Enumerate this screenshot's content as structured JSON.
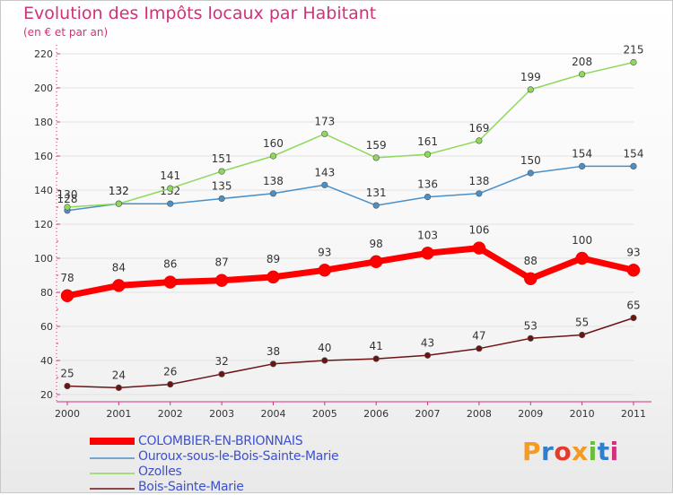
{
  "header": {
    "title": "Evolution des Impôts locaux par Habitant",
    "subtitle": "(en € et par an)"
  },
  "brand": {
    "text": "Proxiti",
    "colors": [
      "#f59a23",
      "#2f7fd0",
      "#e53b2c",
      "#f59a23",
      "#6abf3a",
      "#2f7fd0",
      "#d0327a"
    ]
  },
  "colors": {
    "title": "#d0327a",
    "axis": "#d0327a",
    "grid": "#e2e2e2",
    "legend_text": "#3c50d2"
  },
  "chart_data": {
    "type": "line",
    "title": "Evolution des Impôts locaux par Habitant",
    "subtitle": "(en € et par an)",
    "xlabel": "",
    "ylabel": "",
    "x": [
      "2000",
      "2001",
      "2002",
      "2003",
      "2004",
      "2005",
      "2006",
      "2007",
      "2008",
      "2009",
      "2010",
      "2011"
    ],
    "ylim": [
      20,
      220
    ],
    "yticks": [
      20,
      40,
      60,
      80,
      100,
      120,
      140,
      160,
      180,
      200,
      220
    ],
    "grid": true,
    "legend_position": "bottom-left",
    "series": [
      {
        "name": "COLOMBIER-EN-BRIONNAIS",
        "color": "#ff0000",
        "thick": true,
        "values": [
          78,
          84,
          86,
          87,
          89,
          93,
          98,
          103,
          106,
          88,
          100,
          93
        ]
      },
      {
        "name": "Ouroux-sous-le-Bois-Sainte-Marie",
        "color": "#4a90c8",
        "thick": false,
        "values": [
          128,
          132,
          132,
          135,
          138,
          143,
          131,
          136,
          138,
          150,
          154,
          154
        ]
      },
      {
        "name": "Ozolles",
        "color": "#8ed85a",
        "thick": false,
        "values": [
          130,
          132,
          141,
          151,
          160,
          173,
          159,
          161,
          169,
          199,
          208,
          215
        ]
      },
      {
        "name": "Bois-Sainte-Marie",
        "color": "#6b1414",
        "thick": false,
        "values": [
          25,
          24,
          26,
          32,
          38,
          40,
          41,
          43,
          47,
          53,
          55,
          65
        ]
      }
    ]
  }
}
